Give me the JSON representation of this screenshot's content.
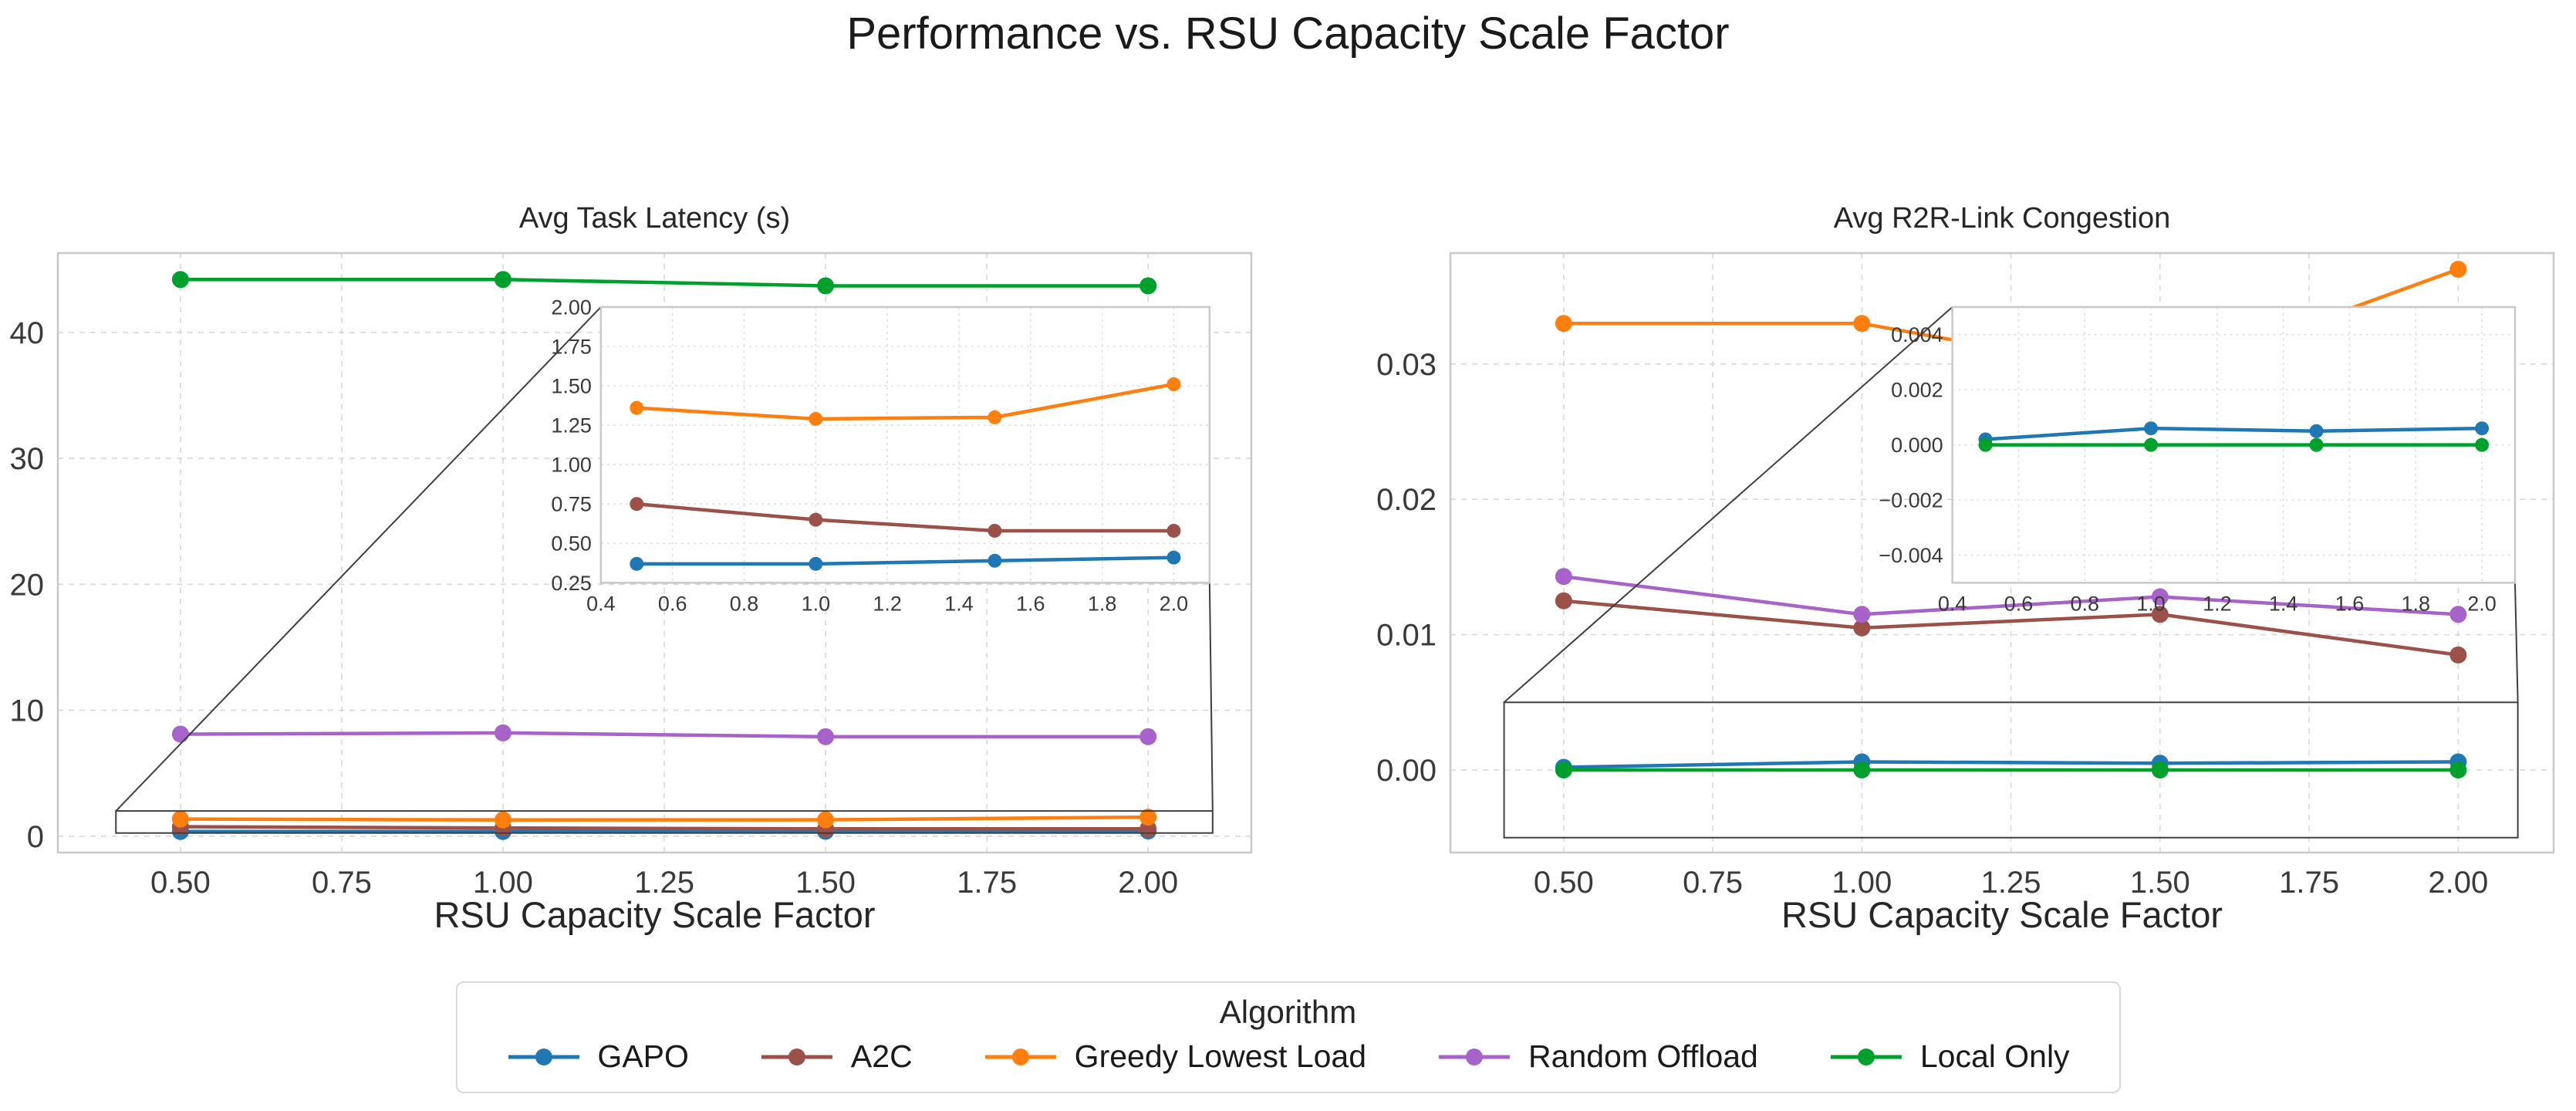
{
  "title": "Performance vs. RSU Capacity Scale Factor",
  "legend": {
    "title": "Algorithm",
    "items": [
      {
        "label": "GAPO",
        "color": "#1f77b4"
      },
      {
        "label": "A2C",
        "color": "#9c5148"
      },
      {
        "label": "Greedy Lowest Load",
        "color": "#ff7f0e"
      },
      {
        "label": "Random Offload",
        "color": "#a763c9"
      },
      {
        "label": "Local Only",
        "color": "#00a02c"
      }
    ]
  },
  "style": {
    "grid_color": "#d8d8d8",
    "inset_grid_color": "#dfdfdf",
    "spine_color": "#c9c9c9",
    "connector_color": "#3f3f3f",
    "tick_color": "#3a3a3a",
    "background": "#ffffff"
  },
  "chart_data": [
    {
      "type": "line",
      "title": "Avg Task Latency (s)",
      "xlabel": "RSU Capacity Scale Factor",
      "x": [
        0.5,
        1.0,
        1.5,
        2.0
      ],
      "xlim": [
        0.31,
        2.16
      ],
      "ylim": [
        -1.3,
        46.3
      ],
      "xtick_values": [
        0.5,
        0.75,
        1.0,
        1.25,
        1.5,
        1.75,
        2.0
      ],
      "xtick_labels": [
        "0.50",
        "0.75",
        "1.00",
        "1.25",
        "1.50",
        "1.75",
        "2.00"
      ],
      "ytick_values": [
        0,
        10,
        20,
        30,
        40
      ],
      "ytick_labels": [
        "0",
        "10",
        "20",
        "30",
        "40"
      ],
      "grid": true,
      "legend_position": "below-figure",
      "series": [
        {
          "name": "GAPO",
          "color": "#1f77b4",
          "values": [
            0.37,
            0.37,
            0.39,
            0.41
          ]
        },
        {
          "name": "A2C",
          "color": "#9c5148",
          "values": [
            0.75,
            0.65,
            0.58,
            0.58
          ]
        },
        {
          "name": "Greedy Lowest Load",
          "color": "#ff7f0e",
          "values": [
            1.36,
            1.29,
            1.3,
            1.51
          ]
        },
        {
          "name": "Random Offload",
          "color": "#a763c9",
          "values": [
            8.1,
            8.2,
            7.9,
            7.9
          ]
        },
        {
          "name": "Local Only",
          "color": "#00a02c",
          "values": [
            44.2,
            44.2,
            43.7,
            43.7
          ]
        }
      ],
      "inset": {
        "xlim": [
          0.4,
          2.1
        ],
        "ylim": [
          0.25,
          2.0
        ],
        "xtick_values": [
          0.4,
          0.6,
          0.8,
          1.0,
          1.2,
          1.4,
          1.6,
          1.8,
          2.0
        ],
        "xtick_labels": [
          "0.4",
          "0.6",
          "0.8",
          "1.0",
          "1.2",
          "1.4",
          "1.6",
          "1.8",
          "2.0"
        ],
        "ytick_values": [
          0.25,
          0.5,
          0.75,
          1.0,
          1.25,
          1.5,
          1.75,
          2.0
        ],
        "ytick_labels": [
          "0.25",
          "0.50",
          "0.75",
          "1.00",
          "1.25",
          "1.50",
          "1.75",
          "2.00"
        ]
      }
    },
    {
      "type": "line",
      "title": "Avg R2R-Link Congestion",
      "xlabel": "RSU Capacity Scale Factor",
      "x": [
        0.5,
        1.0,
        1.5,
        2.0
      ],
      "xlim": [
        0.31,
        2.16
      ],
      "ylim": [
        -0.0061,
        0.0382
      ],
      "xtick_values": [
        0.5,
        0.75,
        1.0,
        1.25,
        1.5,
        1.75,
        2.0
      ],
      "xtick_labels": [
        "0.50",
        "0.75",
        "1.00",
        "1.25",
        "1.50",
        "1.75",
        "2.00"
      ],
      "ytick_values": [
        0.0,
        0.01,
        0.02,
        0.03
      ],
      "ytick_labels": [
        "0.00",
        "0.01",
        "0.02",
        "0.03"
      ],
      "grid": true,
      "legend_position": "below-figure",
      "series": [
        {
          "name": "GAPO",
          "color": "#1f77b4",
          "values": [
            0.0002,
            0.0006,
            0.0005,
            0.0006
          ]
        },
        {
          "name": "A2C",
          "color": "#9c5148",
          "values": [
            0.0125,
            0.0105,
            0.0115,
            0.0085
          ]
        },
        {
          "name": "Greedy Lowest Load",
          "color": "#ff7f0e",
          "values": [
            0.033,
            0.033,
            0.029,
            0.037
          ]
        },
        {
          "name": "Random Offload",
          "color": "#a763c9",
          "values": [
            0.0143,
            0.0115,
            0.0128,
            0.0115
          ]
        },
        {
          "name": "Local Only",
          "color": "#00a02c",
          "values": [
            0.0,
            0.0,
            0.0,
            0.0
          ]
        }
      ],
      "inset": {
        "xlim": [
          0.4,
          2.1
        ],
        "ylim": [
          -0.005,
          0.005
        ],
        "xtick_values": [
          0.4,
          0.6,
          0.8,
          1.0,
          1.2,
          1.4,
          1.6,
          1.8,
          2.0
        ],
        "xtick_labels": [
          "0.4",
          "0.6",
          "0.8",
          "1.0",
          "1.2",
          "1.4",
          "1.6",
          "1.8",
          "2.0"
        ],
        "ytick_values": [
          -0.004,
          -0.002,
          0.0,
          0.002,
          0.004
        ],
        "ytick_labels": [
          "−0.004",
          "−0.002",
          "0.000",
          "0.002",
          "0.004"
        ]
      }
    }
  ]
}
